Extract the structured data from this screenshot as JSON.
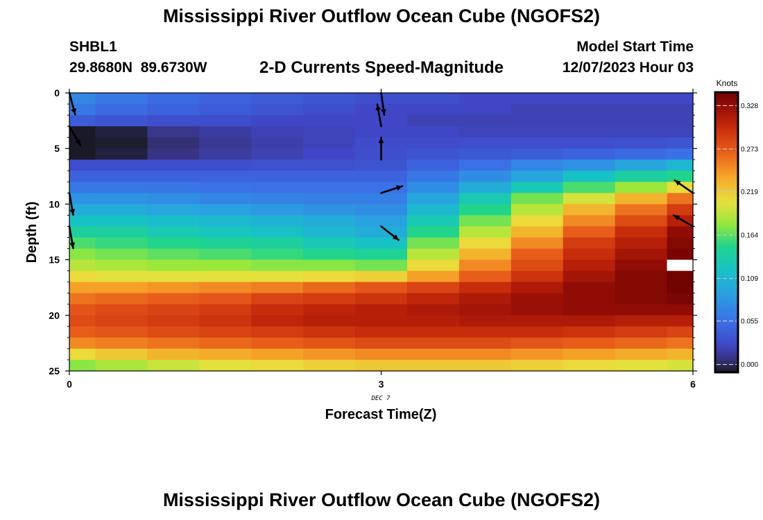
{
  "page": {
    "title": "Mississippi River Outflow Ocean Cube (NGOFS2)",
    "station": "SHBL1",
    "coordinates": "29.8680N  89.6730W",
    "subtitle": "2-D Currents Speed-Magnitude",
    "model_start_label": "Model Start Time",
    "model_start_value": "12/07/2023 Hour 03",
    "bottom_title": "Mississippi River Outflow Ocean Cube (NGOFS2)"
  },
  "chart_data": {
    "type": "heatmap",
    "xlabel": "Forecast Time(Z)",
    "ylabel": "Depth (ft)",
    "date_label": "DEC 7",
    "x_ticks": [
      0,
      3,
      6
    ],
    "y_ticks": [
      0,
      5,
      10,
      15,
      20,
      25
    ],
    "xlim": [
      0,
      6
    ],
    "ylim": [
      0,
      25
    ],
    "y_inverted": true,
    "colorbar": {
      "units": "Knots",
      "ticks": [
        0.0,
        0.055,
        0.109,
        0.164,
        0.219,
        0.273,
        0.328
      ],
      "tick_labels": [
        "0.000",
        "0.055",
        "0.109",
        "0.164",
        "0.219",
        "0.273",
        "0.328"
      ],
      "range": [
        -0.01,
        0.345
      ]
    },
    "time_columns": [
      0,
      0.5,
      1,
      1.5,
      2,
      2.5,
      3,
      3.5,
      4,
      4.5,
      5,
      5.5,
      6
    ],
    "depth_rows": [
      0.5,
      1.5,
      2.5,
      3.5,
      4.5,
      5.5,
      6.5,
      7.5,
      8.5,
      9.5,
      10.5,
      11.5,
      12.5,
      13.5,
      14.5,
      15.5,
      16.5,
      17.5,
      18.5,
      19.5,
      20.5,
      21.5,
      22.5,
      23.5,
      24.5
    ],
    "speed_knots": [
      [
        0.07,
        0.06,
        0.05,
        0.045,
        0.04,
        0.035,
        0.03,
        0.03,
        0.025,
        0.025,
        0.025,
        0.025,
        0.025
      ],
      [
        0.06,
        0.05,
        0.045,
        0.04,
        0.035,
        0.03,
        0.025,
        0.025,
        0.025,
        0.02,
        0.02,
        0.02,
        0.02
      ],
      [
        0.04,
        0.035,
        0.03,
        0.03,
        0.025,
        0.025,
        0.025,
        0.02,
        0.02,
        0.02,
        0.02,
        0.02,
        0.02
      ],
      [
        -0.01,
        -0.005,
        0.01,
        0.015,
        0.02,
        0.022,
        0.025,
        0.025,
        0.022,
        0.022,
        0.022,
        0.022,
        0.022
      ],
      [
        -0.02,
        -0.008,
        0.005,
        0.012,
        0.018,
        0.022,
        0.028,
        0.028,
        0.03,
        0.03,
        0.03,
        0.032,
        0.035
      ],
      [
        -0.01,
        -0.005,
        0.008,
        0.015,
        0.02,
        0.025,
        0.03,
        0.035,
        0.038,
        0.04,
        0.045,
        0.05,
        0.055
      ],
      [
        0.03,
        0.03,
        0.03,
        0.03,
        0.032,
        0.032,
        0.035,
        0.045,
        0.055,
        0.07,
        0.08,
        0.095,
        0.11
      ],
      [
        0.045,
        0.045,
        0.045,
        0.045,
        0.045,
        0.045,
        0.045,
        0.06,
        0.075,
        0.095,
        0.12,
        0.14,
        0.15
      ],
      [
        0.06,
        0.06,
        0.058,
        0.056,
        0.055,
        0.055,
        0.055,
        0.075,
        0.1,
        0.13,
        0.16,
        0.18,
        0.21
      ],
      [
        0.08,
        0.08,
        0.075,
        0.07,
        0.068,
        0.065,
        0.065,
        0.095,
        0.13,
        0.17,
        0.2,
        0.23,
        0.26
      ],
      [
        0.1,
        0.1,
        0.095,
        0.09,
        0.085,
        0.08,
        0.075,
        0.11,
        0.15,
        0.19,
        0.23,
        0.26,
        0.29
      ],
      [
        0.12,
        0.12,
        0.115,
        0.11,
        0.105,
        0.1,
        0.09,
        0.13,
        0.17,
        0.21,
        0.25,
        0.28,
        0.31
      ],
      [
        0.14,
        0.14,
        0.13,
        0.125,
        0.12,
        0.11,
        0.1,
        0.15,
        0.19,
        0.23,
        0.27,
        0.3,
        0.33
      ],
      [
        0.16,
        0.155,
        0.15,
        0.145,
        0.14,
        0.13,
        0.12,
        0.17,
        0.21,
        0.25,
        0.29,
        0.31,
        0.335
      ],
      [
        0.175,
        0.17,
        0.165,
        0.16,
        0.155,
        0.15,
        0.145,
        0.19,
        0.23,
        0.27,
        0.3,
        0.32,
        0.34
      ],
      [
        0.19,
        0.185,
        0.18,
        0.18,
        0.175,
        0.175,
        0.17,
        0.21,
        0.25,
        0.28,
        0.31,
        0.33,
        null
      ],
      [
        0.21,
        0.205,
        0.205,
        0.205,
        0.205,
        0.21,
        0.215,
        0.24,
        0.27,
        0.295,
        0.32,
        0.335,
        0.345
      ],
      [
        0.24,
        0.24,
        0.245,
        0.25,
        0.255,
        0.265,
        0.275,
        0.285,
        0.3,
        0.315,
        0.33,
        0.335,
        0.345
      ],
      [
        0.26,
        0.265,
        0.27,
        0.275,
        0.285,
        0.29,
        0.295,
        0.305,
        0.315,
        0.325,
        0.33,
        0.335,
        0.34
      ],
      [
        0.275,
        0.28,
        0.285,
        0.29,
        0.3,
        0.305,
        0.31,
        0.315,
        0.32,
        0.325,
        0.33,
        0.33,
        0.33
      ],
      [
        0.28,
        0.285,
        0.29,
        0.295,
        0.305,
        0.31,
        0.31,
        0.31,
        0.315,
        0.315,
        0.315,
        0.31,
        0.31
      ],
      [
        0.27,
        0.275,
        0.28,
        0.285,
        0.29,
        0.295,
        0.3,
        0.3,
        0.3,
        0.3,
        0.295,
        0.29,
        0.285
      ],
      [
        0.25,
        0.255,
        0.26,
        0.265,
        0.27,
        0.275,
        0.28,
        0.28,
        0.28,
        0.275,
        0.27,
        0.265,
        0.26
      ],
      [
        0.21,
        0.22,
        0.23,
        0.235,
        0.24,
        0.245,
        0.25,
        0.25,
        0.25,
        0.245,
        0.24,
        0.235,
        0.23
      ],
      [
        0.175,
        0.185,
        0.195,
        0.205,
        0.21,
        0.215,
        0.22,
        0.22,
        0.22,
        0.215,
        0.21,
        0.205,
        0.2
      ]
    ],
    "vectors": [
      {
        "time": 0,
        "depth": 0,
        "dir_deg": 165
      },
      {
        "time": 0,
        "depth": 3,
        "dir_deg": 150
      },
      {
        "time": 0,
        "depth": 9,
        "dir_deg": 170
      },
      {
        "time": 0,
        "depth": 12,
        "dir_deg": 170
      },
      {
        "time": 3,
        "depth": 0,
        "dir_deg": 172
      },
      {
        "time": 3,
        "depth": 3,
        "dir_deg": 350
      },
      {
        "time": 3,
        "depth": 6,
        "dir_deg": 0
      },
      {
        "time": 3,
        "depth": 9,
        "dir_deg": 72
      },
      {
        "time": 3,
        "depth": 12,
        "dir_deg": 128
      },
      {
        "time": 6,
        "depth": 9,
        "dir_deg": 305
      },
      {
        "time": 6,
        "depth": 12,
        "dir_deg": 300
      }
    ]
  }
}
